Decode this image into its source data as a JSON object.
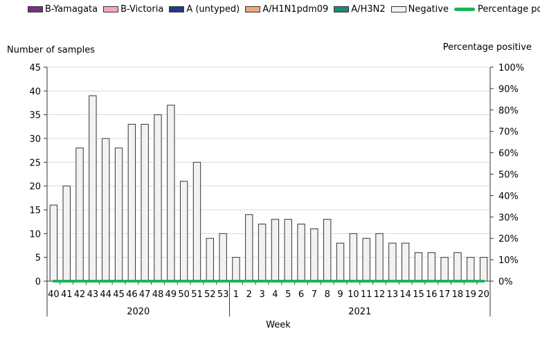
{
  "chart_data": {
    "type": "bar",
    "legend": [
      {
        "name": "B-Yamagata",
        "color": "#7b2e86",
        "kind": "bar"
      },
      {
        "name": "B-Victoria",
        "color": "#f4a6c9",
        "kind": "bar"
      },
      {
        "name": "A (untyped)",
        "color": "#1f3d8a",
        "kind": "bar"
      },
      {
        "name": "A/H1N1pdm09",
        "color": "#f2a47a",
        "kind": "bar"
      },
      {
        "name": "A/H3N2",
        "color": "#1a8a74",
        "kind": "bar"
      },
      {
        "name": "Negative",
        "color": "#f2f2f2",
        "kind": "bar"
      },
      {
        "name": "Percentage positive",
        "color": "#1db35a",
        "kind": "line"
      }
    ],
    "categories": [
      "40",
      "41",
      "42",
      "43",
      "44",
      "45",
      "46",
      "47",
      "48",
      "49",
      "50",
      "51",
      "52",
      "53",
      "1",
      "2",
      "3",
      "4",
      "5",
      "6",
      "7",
      "8",
      "9",
      "10",
      "11",
      "12",
      "13",
      "14",
      "15",
      "16",
      "17",
      "18",
      "19",
      "20"
    ],
    "year_groups": [
      {
        "label": "2020",
        "count": 14
      },
      {
        "label": "2021",
        "count": 20
      }
    ],
    "series": [
      {
        "name": "Negative",
        "values": [
          16,
          20,
          28,
          39,
          30,
          28,
          33,
          33,
          35,
          37,
          21,
          25,
          9,
          10,
          5,
          14,
          12,
          13,
          13,
          12,
          11,
          13,
          8,
          10,
          9,
          10,
          8,
          8,
          6,
          6,
          5,
          6,
          5,
          5
        ]
      },
      {
        "name": "Percentage positive",
        "axis": "right",
        "values": [
          0,
          0,
          0,
          0,
          0,
          0,
          0,
          0,
          0,
          0,
          0,
          0,
          0,
          0,
          0,
          0,
          0,
          0,
          0,
          0,
          0,
          0,
          0,
          0,
          0,
          0,
          0,
          0,
          0,
          0,
          0,
          0,
          0,
          0
        ]
      }
    ],
    "ylabel": "Number of samples",
    "y2label": "Percentage positive",
    "xlabel": "Week",
    "ylim": [
      0,
      45
    ],
    "yticks": [
      0,
      5,
      10,
      15,
      20,
      25,
      30,
      35,
      40,
      45
    ],
    "y2lim": [
      0,
      100
    ],
    "y2ticks": [
      "0%",
      "10%",
      "20%",
      "30%",
      "40%",
      "50%",
      "60%",
      "70%",
      "80%",
      "90%",
      "100%"
    ]
  }
}
